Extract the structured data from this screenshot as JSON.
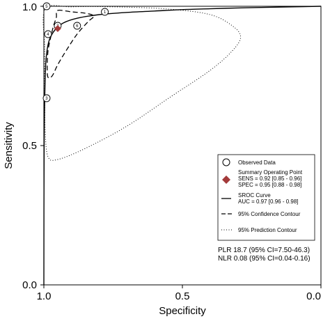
{
  "chart_data": {
    "type": "scatter",
    "xlabel": "Specificity",
    "ylabel": "Sensitivity",
    "xlim": [
      1.0,
      0.0
    ],
    "ylim": [
      0.0,
      1.0
    ],
    "x_ticks": [
      "1.0",
      "0.5",
      "0.0"
    ],
    "y_ticks": [
      "0.0",
      "0.5",
      "1.0"
    ],
    "grid": false,
    "legend_position": "right",
    "studies": [
      {
        "label": "1",
        "specificity": 0.78,
        "sensitivity": 0.98
      },
      {
        "label": "2",
        "specificity": 0.95,
        "sensitivity": 0.93
      },
      {
        "label": "3",
        "specificity": 0.99,
        "sensitivity": 0.67
      },
      {
        "label": "4",
        "specificity": 0.985,
        "sensitivity": 0.9
      },
      {
        "label": "5",
        "specificity": 0.99,
        "sensitivity": 1.0
      },
      {
        "label": "6",
        "specificity": 0.88,
        "sensitivity": 0.93
      }
    ],
    "summary_point": {
      "specificity": 0.95,
      "sensitivity": 0.92,
      "color": "#a33a3a"
    },
    "sroc_curve": [
      [
        1.0,
        0.0
      ],
      [
        0.999,
        0.5
      ],
      [
        0.995,
        0.75
      ],
      [
        0.99,
        0.83
      ],
      [
        0.98,
        0.88
      ],
      [
        0.96,
        0.915
      ],
      [
        0.93,
        0.94
      ],
      [
        0.88,
        0.957
      ],
      [
        0.8,
        0.97
      ],
      [
        0.7,
        0.978
      ],
      [
        0.6,
        0.983
      ],
      [
        0.5,
        0.988
      ],
      [
        0.4,
        0.991
      ],
      [
        0.3,
        0.994
      ],
      [
        0.2,
        0.996
      ],
      [
        0.1,
        0.998
      ],
      [
        0.0,
        1.0
      ]
    ],
    "confidence_contour": [
      [
        0.95,
        0.985
      ],
      [
        0.9,
        0.98
      ],
      [
        0.85,
        0.975
      ],
      [
        0.82,
        0.965
      ],
      [
        0.84,
        0.945
      ],
      [
        0.88,
        0.9
      ],
      [
        0.92,
        0.84
      ],
      [
        0.95,
        0.79
      ],
      [
        0.97,
        0.75
      ],
      [
        0.985,
        0.745
      ],
      [
        0.988,
        0.78
      ],
      [
        0.985,
        0.84
      ],
      [
        0.975,
        0.89
      ],
      [
        0.965,
        0.93
      ],
      [
        0.955,
        0.96
      ]
    ],
    "prediction_contour": [
      [
        0.995,
        0.99
      ],
      [
        0.9,
        0.998
      ],
      [
        0.75,
        0.998
      ],
      [
        0.55,
        0.99
      ],
      [
        0.4,
        0.97
      ],
      [
        0.32,
        0.93
      ],
      [
        0.29,
        0.89
      ],
      [
        0.32,
        0.84
      ],
      [
        0.4,
        0.77
      ],
      [
        0.55,
        0.67
      ],
      [
        0.7,
        0.57
      ],
      [
        0.85,
        0.49
      ],
      [
        0.95,
        0.45
      ],
      [
        0.985,
        0.46
      ],
      [
        0.995,
        0.55
      ],
      [
        0.997,
        0.7
      ],
      [
        0.997,
        0.85
      ]
    ],
    "legend": {
      "observed": "Observed Data",
      "summary_title": "Summary Operating Point",
      "summary_sens": "SENS = 0.92 [0.85 - 0.96]",
      "summary_spec": "SPEC = 0.95 [0.88 - 0.98]",
      "sroc_title": "SROC Curve",
      "sroc_auc": "AUC = 0.97 [0.96 - 0.98]",
      "confidence": "95% Confidence Contour",
      "prediction": "95% Prediction Contour"
    },
    "annotations": {
      "plr": "PLR 18.7 (95% CI=7.50-46.3)",
      "nlr": "NLR 0.08 (95% CI=0.04-0.16)"
    }
  }
}
